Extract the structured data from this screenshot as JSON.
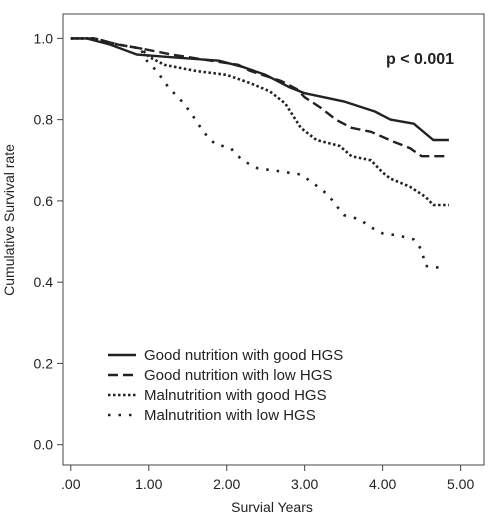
{
  "chart_data": {
    "type": "line",
    "xlabel": "Survial Years",
    "ylabel": "Cumulative Survival rate",
    "xlim": [
      -0.1,
      5.3
    ],
    "ylim": [
      -0.05,
      1.06
    ],
    "x_ticks": [
      0,
      1,
      2,
      3,
      4,
      5
    ],
    "x_tick_labels": [
      ".00",
      "1.00",
      "2.00",
      "3.00",
      "4.00",
      "5.00"
    ],
    "y_ticks": [
      0,
      0.2,
      0.4,
      0.6,
      0.8,
      1.0
    ],
    "y_tick_labels": [
      "0.0",
      "0.2",
      "0.4",
      "0.6",
      "0.8",
      "1.0"
    ],
    "annotation": "p < 0.001",
    "legend_position": "lower-left",
    "grid": false,
    "series": [
      {
        "name": "Good nutrition with good HGS",
        "style": "solid",
        "points": [
          [
            0,
            1.0
          ],
          [
            0.2,
            1.0
          ],
          [
            0.5,
            0.985
          ],
          [
            0.85,
            0.96
          ],
          [
            1.2,
            0.955
          ],
          [
            1.9,
            0.945
          ],
          [
            2.2,
            0.93
          ],
          [
            2.5,
            0.91
          ],
          [
            2.8,
            0.88
          ],
          [
            3.0,
            0.865
          ],
          [
            3.5,
            0.845
          ],
          [
            3.9,
            0.82
          ],
          [
            4.1,
            0.8
          ],
          [
            4.4,
            0.79
          ],
          [
            4.65,
            0.75
          ],
          [
            4.85,
            0.75
          ]
        ]
      },
      {
        "name": "Good nutrition with low HGS",
        "style": "dashed",
        "points": [
          [
            0,
            1.0
          ],
          [
            0.3,
            1.0
          ],
          [
            0.6,
            0.985
          ],
          [
            0.9,
            0.975
          ],
          [
            1.3,
            0.96
          ],
          [
            1.8,
            0.945
          ],
          [
            2.15,
            0.935
          ],
          [
            2.3,
            0.92
          ],
          [
            2.7,
            0.895
          ],
          [
            2.9,
            0.875
          ],
          [
            3.0,
            0.855
          ],
          [
            3.2,
            0.83
          ],
          [
            3.4,
            0.8
          ],
          [
            3.6,
            0.78
          ],
          [
            3.85,
            0.77
          ],
          [
            4.15,
            0.745
          ],
          [
            4.35,
            0.73
          ],
          [
            4.5,
            0.71
          ],
          [
            4.85,
            0.71
          ]
        ]
      },
      {
        "name": "Malnutrition with good HGS",
        "style": "dotted",
        "points": [
          [
            0,
            1.0
          ],
          [
            0.3,
            1.0
          ],
          [
            0.6,
            0.985
          ],
          [
            0.9,
            0.975
          ],
          [
            1.0,
            0.955
          ],
          [
            1.2,
            0.935
          ],
          [
            1.6,
            0.92
          ],
          [
            2.0,
            0.91
          ],
          [
            2.3,
            0.89
          ],
          [
            2.55,
            0.87
          ],
          [
            2.75,
            0.84
          ],
          [
            2.85,
            0.81
          ],
          [
            2.95,
            0.78
          ],
          [
            3.15,
            0.75
          ],
          [
            3.45,
            0.735
          ],
          [
            3.6,
            0.71
          ],
          [
            3.85,
            0.7
          ],
          [
            4.0,
            0.67
          ],
          [
            4.1,
            0.655
          ],
          [
            4.35,
            0.635
          ],
          [
            4.55,
            0.61
          ],
          [
            4.65,
            0.59
          ],
          [
            4.85,
            0.59
          ]
        ]
      },
      {
        "name": "Malnutrition with low HGS",
        "style": "sparse-dotted",
        "points": [
          [
            0,
            1.0
          ],
          [
            0.3,
            1.0
          ],
          [
            0.6,
            0.985
          ],
          [
            0.9,
            0.975
          ],
          [
            0.95,
            0.95
          ],
          [
            1.1,
            0.92
          ],
          [
            1.25,
            0.88
          ],
          [
            1.45,
            0.84
          ],
          [
            1.6,
            0.8
          ],
          [
            1.7,
            0.77
          ],
          [
            1.85,
            0.74
          ],
          [
            2.05,
            0.73
          ],
          [
            2.2,
            0.7
          ],
          [
            2.4,
            0.68
          ],
          [
            2.6,
            0.675
          ],
          [
            2.95,
            0.665
          ],
          [
            3.1,
            0.645
          ],
          [
            3.3,
            0.615
          ],
          [
            3.4,
            0.59
          ],
          [
            3.5,
            0.565
          ],
          [
            3.7,
            0.555
          ],
          [
            3.85,
            0.535
          ],
          [
            4.0,
            0.52
          ],
          [
            4.2,
            0.515
          ],
          [
            4.4,
            0.505
          ],
          [
            4.5,
            0.48
          ],
          [
            4.55,
            0.44
          ],
          [
            4.75,
            0.435
          ]
        ]
      }
    ]
  }
}
